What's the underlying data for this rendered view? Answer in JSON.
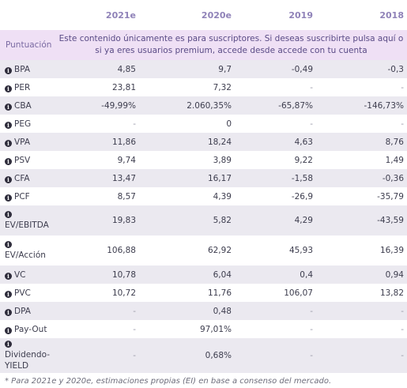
{
  "columns": [
    "2021e",
    "2020e",
    "2019",
    "2018"
  ],
  "notice": {
    "label": "Puntuación",
    "text": "Este contenido únicamente es para suscriptores. Si deseas suscribirte pulsa aquí o si ya eres usuarios premium, accede desde accede con tu cuenta"
  },
  "info_icon": {
    "glyph": "i",
    "icon": "info-icon"
  },
  "rows": [
    {
      "label": "BPA",
      "v": [
        "4,85",
        "9,7",
        "-0,49",
        "-0,3"
      ]
    },
    {
      "label": "PER",
      "v": [
        "23,81",
        "7,32",
        "-",
        "-"
      ]
    },
    {
      "label": "CBA",
      "v": [
        "-49,99%",
        "2.060,35%",
        "-65,87%",
        "-146,73%"
      ]
    },
    {
      "label": "PEG",
      "v": [
        "-",
        "0",
        "-",
        "-"
      ]
    },
    {
      "label": "VPA",
      "v": [
        "11,86",
        "18,24",
        "4,63",
        "8,76"
      ]
    },
    {
      "label": "PSV",
      "v": [
        "9,74",
        "3,89",
        "9,22",
        "1,49"
      ]
    },
    {
      "label": "CFA",
      "v": [
        "13,47",
        "16,17",
        "-1,58",
        "-0,36"
      ]
    },
    {
      "label": "PCF",
      "v": [
        "8,57",
        "4,39",
        "-26,9",
        "-35,79"
      ]
    },
    {
      "label": "EV/EBITDA",
      "v": [
        "19,83",
        "5,82",
        "4,29",
        "-43,59"
      ]
    },
    {
      "label": "EV/Acción",
      "v": [
        "106,88",
        "62,92",
        "45,93",
        "16,39"
      ]
    },
    {
      "label": "VC",
      "v": [
        "10,78",
        "6,04",
        "0,4",
        "0,94"
      ]
    },
    {
      "label": "PVC",
      "v": [
        "10,72",
        "11,76",
        "106,07",
        "13,82"
      ]
    },
    {
      "label": "DPA",
      "v": [
        "-",
        "0,48",
        "-",
        "-"
      ]
    },
    {
      "label": "Pay-Out",
      "v": [
        "-",
        "97,01%",
        "-",
        "-"
      ]
    },
    {
      "label": "Dividendo-YIELD",
      "v": [
        "-",
        "0,68%",
        "-",
        "-"
      ]
    }
  ],
  "footnote": "* Para 2021e y 2020e, estimaciones propias (EI) en base a consenso del mercado."
}
